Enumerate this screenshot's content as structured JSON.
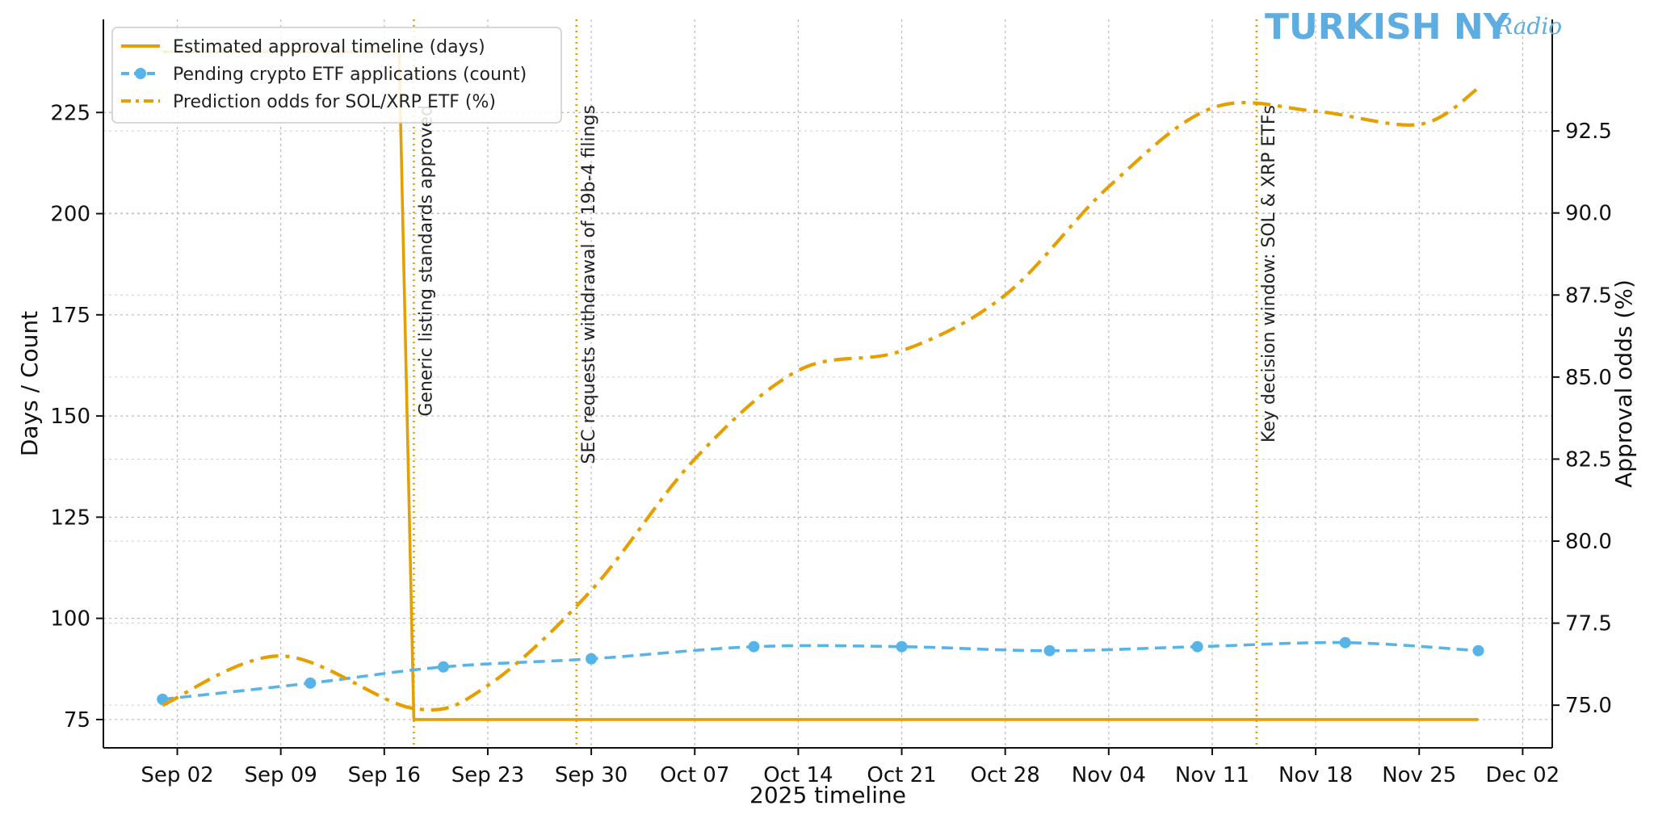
{
  "brand": {
    "main": "TURKISH NY",
    "script": "Radio"
  },
  "chart_data": {
    "type": "line",
    "title": "",
    "xlabel": "2025 timeline",
    "ylabel": "Days / Count",
    "y2label": "Approval odds (%)",
    "xlim": [
      "2025-08-28",
      "2025-12-04"
    ],
    "ylim": [
      68,
      248
    ],
    "y2lim": [
      73.7,
      95.9
    ],
    "x_ticks": [
      {
        "date": "2025-09-02",
        "label": "Sep 02"
      },
      {
        "date": "2025-09-09",
        "label": "Sep 09"
      },
      {
        "date": "2025-09-16",
        "label": "Sep 16"
      },
      {
        "date": "2025-09-23",
        "label": "Sep 23"
      },
      {
        "date": "2025-09-30",
        "label": "Sep 30"
      },
      {
        "date": "2025-10-07",
        "label": "Oct 07"
      },
      {
        "date": "2025-10-14",
        "label": "Oct 14"
      },
      {
        "date": "2025-10-21",
        "label": "Oct 21"
      },
      {
        "date": "2025-10-28",
        "label": "Oct 28"
      },
      {
        "date": "2025-11-04",
        "label": "Nov 04"
      },
      {
        "date": "2025-11-11",
        "label": "Nov 11"
      },
      {
        "date": "2025-11-18",
        "label": "Nov 18"
      },
      {
        "date": "2025-11-25",
        "label": "Nov 25"
      },
      {
        "date": "2025-12-02",
        "label": "Dec 02"
      }
    ],
    "y_ticks": [
      {
        "value": 75,
        "label": "75"
      },
      {
        "value": 100,
        "label": "100"
      },
      {
        "value": 125,
        "label": "125"
      },
      {
        "value": 150,
        "label": "150"
      },
      {
        "value": 175,
        "label": "175"
      },
      {
        "value": 200,
        "label": "200"
      },
      {
        "value": 225,
        "label": "225"
      }
    ],
    "y2_ticks": [
      {
        "value": 75.0,
        "label": "75.0"
      },
      {
        "value": 77.5,
        "label": "77.5"
      },
      {
        "value": 80.0,
        "label": "80.0"
      },
      {
        "value": 82.5,
        "label": "82.5"
      },
      {
        "value": 85.0,
        "label": "85.0"
      },
      {
        "value": 87.5,
        "label": "87.5"
      },
      {
        "value": 90.0,
        "label": "90.0"
      },
      {
        "value": 92.5,
        "label": "92.5"
      }
    ],
    "grid": true,
    "legend_position": "top-left",
    "series": [
      {
        "name": "Estimated approval timeline (days)",
        "axis": "left",
        "color": "#e69f00",
        "style": "solid",
        "points": [
          {
            "x": "2025-09-01",
            "y": 240
          },
          {
            "x": "2025-09-17",
            "y": 240
          },
          {
            "x": "2025-09-18",
            "y": 75
          },
          {
            "x": "2025-11-29",
            "y": 75
          }
        ]
      },
      {
        "name": "Pending crypto ETF applications (count)",
        "axis": "left",
        "color": "#56b4e9",
        "style": "dashed",
        "markers": true,
        "points": [
          {
            "x": "2025-09-01",
            "y": 80
          },
          {
            "x": "2025-09-11",
            "y": 84
          },
          {
            "x": "2025-09-20",
            "y": 88
          },
          {
            "x": "2025-09-30",
            "y": 90
          },
          {
            "x": "2025-10-11",
            "y": 93
          },
          {
            "x": "2025-10-21",
            "y": 93
          },
          {
            "x": "2025-10-31",
            "y": 92
          },
          {
            "x": "2025-11-10",
            "y": 93
          },
          {
            "x": "2025-11-20",
            "y": 94
          },
          {
            "x": "2025-11-29",
            "y": 92
          }
        ]
      },
      {
        "name": "Prediction odds for SOL/XRP ETF (%)",
        "axis": "right",
        "color": "#e69f00",
        "style": "dashdot",
        "points": [
          {
            "x": "2025-09-01",
            "y": 75.0
          },
          {
            "x": "2025-09-09",
            "y": 76.5
          },
          {
            "x": "2025-09-18",
            "y": 74.9
          },
          {
            "x": "2025-09-23",
            "y": 75.6
          },
          {
            "x": "2025-09-30",
            "y": 78.5
          },
          {
            "x": "2025-10-07",
            "y": 82.5
          },
          {
            "x": "2025-10-14",
            "y": 85.2
          },
          {
            "x": "2025-10-21",
            "y": 85.8
          },
          {
            "x": "2025-10-28",
            "y": 87.5
          },
          {
            "x": "2025-11-04",
            "y": 90.8
          },
          {
            "x": "2025-11-11",
            "y": 93.2
          },
          {
            "x": "2025-11-18",
            "y": 93.1
          },
          {
            "x": "2025-11-25",
            "y": 92.7
          },
          {
            "x": "2025-11-29",
            "y": 93.8
          }
        ]
      }
    ],
    "annotations": [
      {
        "x": "2025-09-18",
        "text": "Generic listing standards approved"
      },
      {
        "x": "2025-09-29",
        "text": "SEC requests withdrawal of 19b-4 filings"
      },
      {
        "x": "2025-11-14",
        "text": "Key decision window: SOL & XRP ETFs"
      }
    ]
  }
}
